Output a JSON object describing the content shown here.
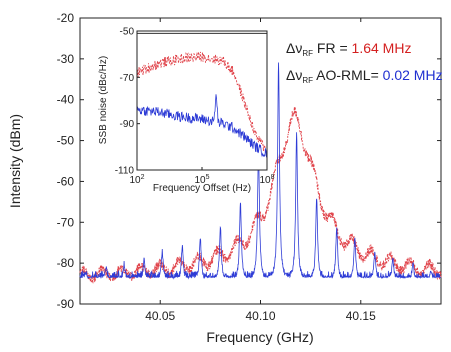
{
  "chart_data": [
    {
      "type": "line",
      "xlabel": "Frequency (GHz)",
      "ylabel": "Intensity (dBm)",
      "xlim": [
        40.01,
        40.19
      ],
      "ylim": [
        -90,
        -20
      ],
      "x_ticks": [
        40.05,
        40.1,
        40.15
      ],
      "x_tick_labels": [
        "40.05",
        "40.10",
        "40.15"
      ],
      "y_ticks": [
        -90,
        -80,
        -70,
        -60,
        -50,
        -40,
        -30,
        -20
      ],
      "y_tick_labels": [
        "-90",
        "-80",
        "-70",
        "-60",
        "-50",
        "-40",
        "-30",
        "-20"
      ],
      "grid": false,
      "series": [
        {
          "color": "#2e3cd6",
          "style": "solid",
          "comb_spacing_ghz": 0.0096,
          "center_ghz": 40.109,
          "baseline_dbm": -84,
          "peaks": [
            {
              "x": 40.013,
              "y": -82
            },
            {
              "x": 40.023,
              "y": -81
            },
            {
              "x": 40.032,
              "y": -80
            },
            {
              "x": 40.042,
              "y": -79
            },
            {
              "x": 40.051,
              "y": -77
            },
            {
              "x": 40.061,
              "y": -76
            },
            {
              "x": 40.07,
              "y": -74
            },
            {
              "x": 40.08,
              "y": -71
            },
            {
              "x": 40.09,
              "y": -65
            },
            {
              "x": 40.099,
              "y": -52
            },
            {
              "x": 40.109,
              "y": -31
            },
            {
              "x": 40.118,
              "y": -48
            },
            {
              "x": 40.128,
              "y": -64
            },
            {
              "x": 40.138,
              "y": -71
            },
            {
              "x": 40.147,
              "y": -74
            },
            {
              "x": 40.157,
              "y": -77
            },
            {
              "x": 40.166,
              "y": -79
            },
            {
              "x": 40.176,
              "y": -80
            },
            {
              "x": 40.185,
              "y": -82
            }
          ]
        },
        {
          "color": "#e0434a",
          "style": "dashed",
          "peak_x": 40.117,
          "peak_y": -45,
          "baseline_dbm": -84
        }
      ],
      "annotations": {
        "line1_prefix": "Δν",
        "line1_sub": "RF",
        "line1_label": " FR = ",
        "line1_value": "1.64 MHz",
        "line1_color": "#d42020",
        "line2_prefix": "Δν",
        "line2_sub": "RF",
        "line2_label": " AO-RML= ",
        "line2_value": "0.02 MHz",
        "line2_color": "#1f2fd0"
      }
    },
    {
      "type": "line",
      "xlabel": "Frequency Offset (Hz)",
      "ylabel": "SSB noise (dBc/Hz)",
      "xscale": "log",
      "xlim": [
        100,
        100000000
      ],
      "ylim": [
        -110,
        -50
      ],
      "x_ticks": [
        100,
        100000,
        100000000
      ],
      "x_tick_base": [
        "10",
        "10",
        "10"
      ],
      "x_tick_exp": [
        "2",
        "5",
        "8"
      ],
      "y_ticks": [
        -50,
        -70,
        -90,
        -110
      ],
      "y_tick_labels": [
        "-50",
        "-70",
        "-90",
        "-110"
      ],
      "series": [
        {
          "color": "#e0434a",
          "style": "dashed",
          "points": [
            [
              100,
              -68
            ],
            [
              1000,
              -64
            ],
            [
              10000,
              -62
            ],
            [
              100000,
              -61
            ],
            [
              1000000,
              -63
            ],
            [
              3000000,
              -68
            ],
            [
              10000000,
              -82
            ],
            [
              30000000,
              -95
            ],
            [
              100000000,
              -102
            ]
          ]
        },
        {
          "color": "#2e3cd6",
          "style": "solid",
          "points": [
            [
              100,
              -84
            ],
            [
              1000,
              -85
            ],
            [
              10000,
              -87
            ],
            [
              100000,
              -88
            ],
            [
              1000000,
              -90
            ],
            [
              3000000,
              -92
            ],
            [
              10000000,
              -96
            ],
            [
              30000000,
              -100
            ],
            [
              100000000,
              -103
            ]
          ]
        },
        {
          "color": "#333333",
          "style": "solid",
          "points": [
            [
              100,
              -51
            ],
            [
              100000000,
              -51
            ]
          ]
        }
      ]
    }
  ]
}
